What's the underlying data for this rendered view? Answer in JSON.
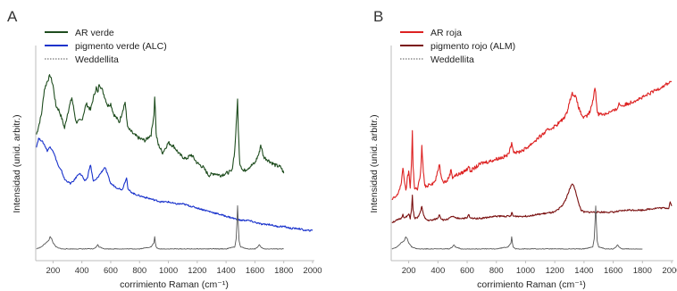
{
  "chart_data": [
    {
      "panel_label": "A",
      "type": "line",
      "xlabel": "corrimiento Raman (cm⁻¹)",
      "ylabel": "Intensidad (unid. arbitr.)",
      "xlim": [
        80,
        2000
      ],
      "xticks": [
        200,
        400,
        600,
        800,
        1000,
        1200,
        1400,
        1600,
        1800,
        2000
      ],
      "y_ticks_shown": false,
      "legend_position": "top-left",
      "series": [
        {
          "name": "AR verde",
          "color": "#1f4d1f",
          "style": "solid",
          "x": [
            85,
            100,
            120,
            140,
            160,
            180,
            200,
            220,
            240,
            260,
            280,
            300,
            330,
            360,
            400,
            430,
            460,
            480,
            500,
            510,
            520,
            540,
            560,
            580,
            600,
            620,
            640,
            660,
            680,
            700,
            710,
            720,
            760,
            800,
            840,
            880,
            900,
            905,
            910,
            915,
            930,
            960,
            1000,
            1040,
            1080,
            1120,
            1160,
            1200,
            1240,
            1280,
            1320,
            1360,
            1400,
            1440,
            1460,
            1475,
            1480,
            1485,
            1495,
            1520,
            1560,
            1600,
            1630,
            1640,
            1660,
            1700,
            1740,
            1780,
            1800
          ],
          "y": [
            0.6,
            0.64,
            0.7,
            0.82,
            0.86,
            0.89,
            0.84,
            0.74,
            0.72,
            0.68,
            0.63,
            0.7,
            0.78,
            0.66,
            0.67,
            0.75,
            0.72,
            0.78,
            0.83,
            0.8,
            0.85,
            0.82,
            0.78,
            0.74,
            0.75,
            0.7,
            0.68,
            0.66,
            0.71,
            0.76,
            0.68,
            0.63,
            0.6,
            0.58,
            0.57,
            0.6,
            0.7,
            0.78,
            0.72,
            0.6,
            0.55,
            0.51,
            0.56,
            0.54,
            0.5,
            0.48,
            0.5,
            0.46,
            0.44,
            0.4,
            0.41,
            0.4,
            0.41,
            0.42,
            0.52,
            0.7,
            0.78,
            0.62,
            0.46,
            0.42,
            0.44,
            0.46,
            0.51,
            0.55,
            0.49,
            0.47,
            0.45,
            0.44,
            0.41
          ]
        },
        {
          "name": "pigmento verde (ALC)",
          "color": "#1a33cc",
          "style": "solid",
          "x": [
            85,
            100,
            120,
            140,
            160,
            180,
            200,
            220,
            240,
            260,
            270,
            280,
            300,
            320,
            340,
            360,
            380,
            400,
            420,
            440,
            450,
            460,
            470,
            480,
            500,
            520,
            540,
            560,
            580,
            600,
            640,
            680,
            700,
            710,
            720,
            760,
            800,
            850,
            900,
            950,
            1000,
            1050,
            1100,
            1150,
            1200,
            1250,
            1300,
            1350,
            1400,
            1450,
            1500,
            1550,
            1600,
            1650,
            1700,
            1750,
            1800,
            1850,
            1900,
            1950,
            2000
          ],
          "y": [
            0.54,
            0.58,
            0.57,
            0.55,
            0.52,
            0.54,
            0.52,
            0.48,
            0.44,
            0.42,
            0.4,
            0.38,
            0.37,
            0.36,
            0.37,
            0.39,
            0.41,
            0.4,
            0.37,
            0.39,
            0.43,
            0.45,
            0.41,
            0.37,
            0.38,
            0.4,
            0.42,
            0.44,
            0.4,
            0.36,
            0.34,
            0.33,
            0.37,
            0.39,
            0.33,
            0.31,
            0.3,
            0.29,
            0.28,
            0.27,
            0.27,
            0.26,
            0.26,
            0.25,
            0.24,
            0.23,
            0.22,
            0.21,
            0.2,
            0.19,
            0.18,
            0.18,
            0.17,
            0.16,
            0.16,
            0.15,
            0.15,
            0.14,
            0.14,
            0.13,
            0.13
          ]
        },
        {
          "name": "Weddellita",
          "color": "#555555",
          "style": "dotted",
          "x": [
            85,
            120,
            150,
            170,
            180,
            190,
            200,
            220,
            260,
            300,
            400,
            480,
            500,
            510,
            520,
            560,
            600,
            700,
            800,
            880,
            900,
            905,
            910,
            915,
            930,
            1000,
            1100,
            1200,
            1300,
            1400,
            1460,
            1470,
            1475,
            1480,
            1485,
            1490,
            1500,
            1550,
            1600,
            1620,
            1630,
            1640,
            1660,
            1700,
            1800
          ],
          "y": [
            0.04,
            0.05,
            0.07,
            0.08,
            0.1,
            0.09,
            0.07,
            0.05,
            0.04,
            0.04,
            0.04,
            0.04,
            0.05,
            0.06,
            0.05,
            0.04,
            0.04,
            0.04,
            0.04,
            0.05,
            0.07,
            0.1,
            0.07,
            0.05,
            0.04,
            0.04,
            0.04,
            0.04,
            0.04,
            0.04,
            0.05,
            0.09,
            0.16,
            0.25,
            0.16,
            0.08,
            0.05,
            0.04,
            0.04,
            0.05,
            0.06,
            0.05,
            0.04,
            0.04,
            0.04
          ]
        }
      ]
    },
    {
      "panel_label": "B",
      "type": "line",
      "xlabel": "corrimiento Raman (cm⁻¹)",
      "ylabel": "Intensidad (unid. arbitr.)",
      "xlim": [
        80,
        2000
      ],
      "xticks": [
        200,
        400,
        600,
        800,
        1000,
        1200,
        1400,
        1600,
        1800,
        2000
      ],
      "y_ticks_shown": false,
      "legend_position": "top-left",
      "series": [
        {
          "name": "AR roja",
          "color": "#dd2222",
          "style": "solid",
          "x": [
            85,
            120,
            150,
            160,
            170,
            180,
            190,
            200,
            210,
            220,
            225,
            230,
            240,
            260,
            280,
            290,
            300,
            310,
            320,
            340,
            360,
            380,
            400,
            410,
            420,
            440,
            460,
            480,
            490,
            500,
            520,
            560,
            600,
            610,
            620,
            660,
            700,
            760,
            800,
            850,
            880,
            900,
            905,
            915,
            940,
            1000,
            1050,
            1100,
            1150,
            1200,
            1250,
            1280,
            1300,
            1320,
            1340,
            1360,
            1380,
            1400,
            1420,
            1440,
            1460,
            1470,
            1475,
            1480,
            1490,
            1500,
            1540,
            1580,
            1620,
            1640,
            1660,
            1700,
            1760,
            1800,
            1850,
            1900,
            1950,
            2000
          ],
          "y": [
            0.28,
            0.3,
            0.36,
            0.44,
            0.38,
            0.32,
            0.38,
            0.42,
            0.34,
            0.48,
            0.62,
            0.44,
            0.34,
            0.33,
            0.4,
            0.54,
            0.42,
            0.35,
            0.34,
            0.36,
            0.36,
            0.37,
            0.42,
            0.46,
            0.4,
            0.37,
            0.37,
            0.4,
            0.43,
            0.39,
            0.4,
            0.41,
            0.43,
            0.45,
            0.42,
            0.44,
            0.46,
            0.47,
            0.48,
            0.49,
            0.5,
            0.54,
            0.57,
            0.52,
            0.51,
            0.53,
            0.56,
            0.59,
            0.62,
            0.64,
            0.67,
            0.7,
            0.76,
            0.8,
            0.79,
            0.74,
            0.7,
            0.68,
            0.69,
            0.71,
            0.76,
            0.81,
            0.83,
            0.8,
            0.72,
            0.7,
            0.7,
            0.71,
            0.72,
            0.75,
            0.74,
            0.75,
            0.77,
            0.78,
            0.8,
            0.82,
            0.84,
            0.86
          ]
        },
        {
          "name": "pigmento rojo (ALM)",
          "color": "#7a1010",
          "style": "solid",
          "x": [
            85,
            120,
            150,
            160,
            170,
            190,
            200,
            210,
            220,
            225,
            230,
            240,
            260,
            280,
            290,
            300,
            310,
            330,
            360,
            400,
            410,
            420,
            440,
            480,
            500,
            520,
            560,
            600,
            610,
            620,
            660,
            700,
            800,
            900,
            905,
            915,
            1000,
            1100,
            1200,
            1250,
            1280,
            1300,
            1320,
            1340,
            1360,
            1380,
            1400,
            1440,
            1480,
            1500,
            1600,
            1700,
            1800,
            1900,
            1980,
            1990,
            2000
          ],
          "y": [
            0.17,
            0.18,
            0.19,
            0.21,
            0.19,
            0.2,
            0.21,
            0.19,
            0.24,
            0.3,
            0.23,
            0.19,
            0.19,
            0.22,
            0.25,
            0.21,
            0.19,
            0.18,
            0.18,
            0.19,
            0.21,
            0.19,
            0.18,
            0.19,
            0.2,
            0.19,
            0.19,
            0.19,
            0.21,
            0.19,
            0.19,
            0.19,
            0.2,
            0.2,
            0.22,
            0.2,
            0.2,
            0.21,
            0.22,
            0.25,
            0.29,
            0.33,
            0.36,
            0.33,
            0.27,
            0.23,
            0.22,
            0.22,
            0.22,
            0.22,
            0.22,
            0.23,
            0.23,
            0.24,
            0.24,
            0.27,
            0.25
          ]
        },
        {
          "name": "Weddellita",
          "color": "#555555",
          "style": "dotted",
          "x": [
            85,
            120,
            150,
            170,
            180,
            190,
            200,
            220,
            260,
            300,
            400,
            480,
            500,
            510,
            520,
            560,
            600,
            700,
            800,
            880,
            900,
            905,
            910,
            915,
            930,
            1000,
            1100,
            1200,
            1300,
            1400,
            1460,
            1470,
            1475,
            1480,
            1485,
            1490,
            1500,
            1550,
            1600,
            1620,
            1630,
            1640,
            1660,
            1700,
            1800
          ],
          "y": [
            0.04,
            0.05,
            0.07,
            0.08,
            0.1,
            0.09,
            0.07,
            0.05,
            0.04,
            0.04,
            0.04,
            0.04,
            0.05,
            0.06,
            0.05,
            0.04,
            0.04,
            0.04,
            0.04,
            0.05,
            0.07,
            0.1,
            0.07,
            0.05,
            0.04,
            0.04,
            0.04,
            0.04,
            0.04,
            0.04,
            0.05,
            0.09,
            0.16,
            0.25,
            0.16,
            0.08,
            0.05,
            0.04,
            0.04,
            0.05,
            0.06,
            0.05,
            0.04,
            0.04,
            0.04
          ]
        }
      ]
    }
  ]
}
